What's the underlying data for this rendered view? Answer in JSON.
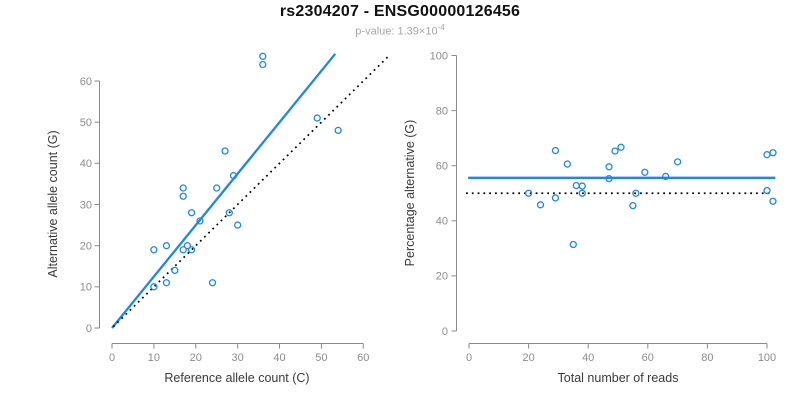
{
  "header": {
    "title": "rs2304207 - ENSG00000126456",
    "pvalue_prefix": "p-value: 1.39×10",
    "pvalue_exponent": "-4"
  },
  "colors": {
    "accent_blue": "#1e88e5",
    "dotted_black": "#000000",
    "axis_line_gray": "#8a8a8a",
    "tick_label_gray": "#8c8c8c",
    "axis_title_dark": "#3a3a3a",
    "title_black": "#111111",
    "subtitle_gray": "#a6a6a6"
  },
  "chart_data": [
    {
      "type": "scatter",
      "name": "left-plot-allele-counts",
      "xlabel": "Reference allele count (C)",
      "ylabel": "Alternative allele count (G)",
      "xlim": [
        0,
        60
      ],
      "ylim": [
        0,
        60
      ],
      "xticks": [
        0,
        10,
        20,
        30,
        40,
        50,
        60
      ],
      "yticks": [
        0,
        10,
        20,
        30,
        40,
        50,
        60
      ],
      "grid": false,
      "legend": "none",
      "points": [
        [
          10,
          10
        ],
        [
          10,
          19
        ],
        [
          13,
          11
        ],
        [
          13,
          20
        ],
        [
          15,
          14
        ],
        [
          17,
          19
        ],
        [
          17,
          32
        ],
        [
          17,
          34
        ],
        [
          18,
          20
        ],
        [
          19,
          19
        ],
        [
          19,
          28
        ],
        [
          21,
          26
        ],
        [
          24,
          11
        ],
        [
          25,
          34
        ],
        [
          27,
          43
        ],
        [
          28,
          28
        ],
        [
          29,
          37
        ],
        [
          30,
          25
        ],
        [
          36,
          64
        ],
        [
          36,
          66
        ],
        [
          49,
          51
        ],
        [
          54,
          48
        ]
      ],
      "lines": [
        {
          "name": "regression-line",
          "style": "solid",
          "slope": 1.25,
          "intercept": 0,
          "from": [
            0,
            0
          ],
          "to": [
            53.3,
            66.6
          ]
        },
        {
          "name": "identity-line",
          "style": "dotted",
          "slope": 1,
          "intercept": 0,
          "from": [
            0.3,
            0.3
          ],
          "to": [
            65.8,
            65.8
          ]
        }
      ]
    },
    {
      "type": "scatter",
      "name": "right-plot-percentage",
      "xlabel": "Total number of reads",
      "ylabel": "Percentage alternative (G)",
      "xlim": [
        0,
        100
      ],
      "ylim": [
        0,
        100
      ],
      "xticks": [
        0,
        20,
        40,
        60,
        80,
        100
      ],
      "yticks": [
        0,
        20,
        40,
        60,
        80,
        100
      ],
      "grid": false,
      "legend": "none",
      "points": [
        [
          20,
          50
        ],
        [
          24,
          45.8
        ],
        [
          29,
          65.5
        ],
        [
          29,
          48.3
        ],
        [
          33,
          60.6
        ],
        [
          35,
          31.4
        ],
        [
          36,
          52.8
        ],
        [
          38,
          52.6
        ],
        [
          38,
          50
        ],
        [
          47,
          59.6
        ],
        [
          47,
          55.3
        ],
        [
          49,
          65.3
        ],
        [
          51,
          66.7
        ],
        [
          55,
          45.5
        ],
        [
          56,
          50
        ],
        [
          59,
          57.6
        ],
        [
          66,
          56.1
        ],
        [
          70,
          61.4
        ],
        [
          100,
          64
        ],
        [
          100,
          51
        ],
        [
          102,
          64.7
        ],
        [
          102,
          47.1
        ]
      ],
      "lines": [
        {
          "name": "mean-percentage-line",
          "style": "solid",
          "value": 55.6,
          "from": [
            -0.3,
            55.6
          ],
          "to": [
            102.8,
            55.6
          ]
        },
        {
          "name": "fifty-percent-line",
          "style": "dotted",
          "value": 50,
          "from": [
            -1,
            50
          ],
          "to": [
            101,
            50
          ]
        }
      ]
    }
  ]
}
